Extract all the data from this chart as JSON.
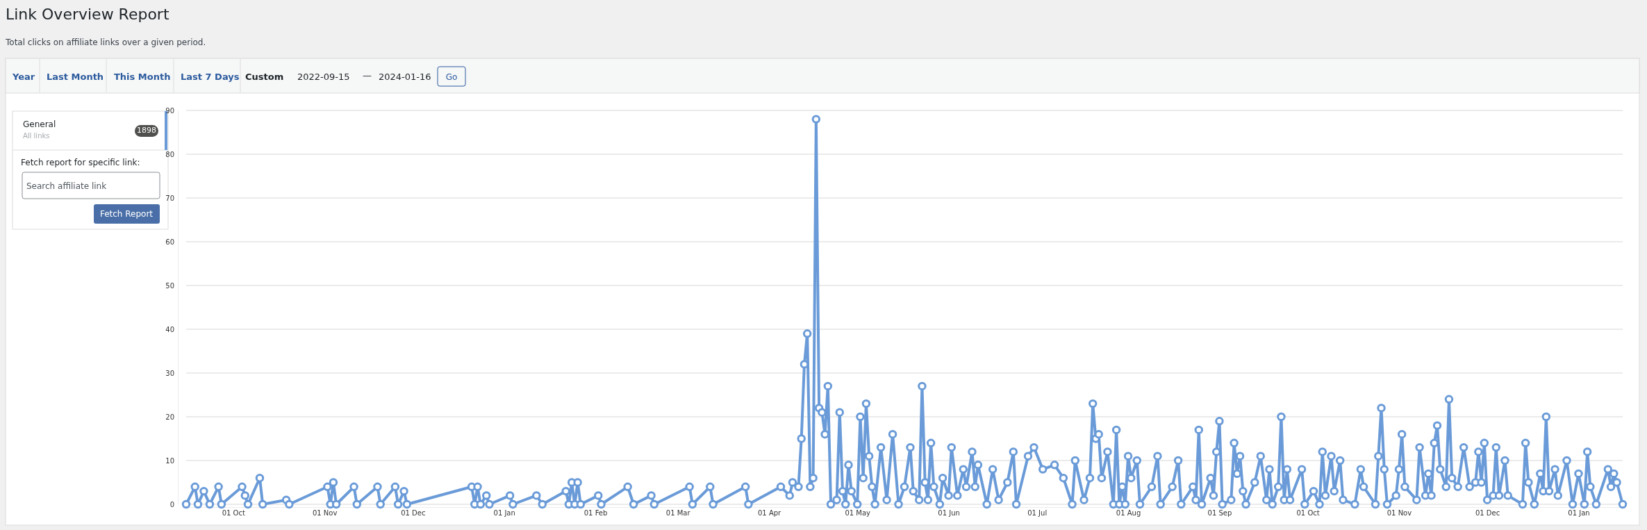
{
  "chart_data": {
    "type": "line",
    "title": "Link Overview Report",
    "subtitle": "Total clicks on affiliate links over a given period.",
    "annotations": [
      "Year",
      "Last Month",
      "This Month",
      "Last 7 Days",
      "Custom",
      "2022-09-15",
      "—",
      "2024-01-16",
      "Go",
      "General",
      "All links",
      "1898",
      "Fetch report for specific link:",
      "Search affiliate link",
      "Fetch Report"
    ],
    "xlim": [
      "2022-09-15",
      "2024-01-16"
    ],
    "xticks": [
      {
        "value": "2022-10-01",
        "label": "01 Oct"
      },
      {
        "value": "2022-11-01",
        "label": "01 Nov"
      },
      {
        "value": "2022-12-01",
        "label": "01 Dec"
      },
      {
        "value": "2023-01-01",
        "label": "01 Jan"
      },
      {
        "value": "2023-02-01",
        "label": "01 Feb"
      },
      {
        "value": "2023-03-01",
        "label": "01 Mar"
      },
      {
        "value": "2023-04-01",
        "label": "01 Apr"
      },
      {
        "value": "2023-05-01",
        "label": "01 May"
      },
      {
        "value": "2023-06-01",
        "label": "01 Jun"
      },
      {
        "value": "2023-07-01",
        "label": "01 Jul"
      },
      {
        "value": "2023-08-01",
        "label": "01 Aug"
      },
      {
        "value": "2023-09-01",
        "label": "01 Sep"
      },
      {
        "value": "2023-10-01",
        "label": "01 Oct"
      },
      {
        "value": "2023-11-01",
        "label": "01 Nov"
      },
      {
        "value": "2023-12-01",
        "label": "01 Dec"
      },
      {
        "value": "2024-01-01",
        "label": "01 Jan"
      }
    ],
    "ylim": [
      0,
      90
    ],
    "yticks": [
      0,
      10,
      20,
      30,
      40,
      50,
      60,
      70,
      80,
      90
    ],
    "grid": "y",
    "marker": "circle",
    "color": "#6a9bd8",
    "x": [
      "2022-09-15",
      "2022-09-18",
      "2022-09-19",
      "2022-09-21",
      "2022-09-23",
      "2022-09-26",
      "2022-09-27",
      "2022-10-04",
      "2022-10-05",
      "2022-10-06",
      "2022-10-10",
      "2022-10-11",
      "2022-10-19",
      "2022-10-20",
      "2022-11-02",
      "2022-11-03",
      "2022-11-04",
      "2022-11-05",
      "2022-11-11",
      "2022-11-12",
      "2022-11-19",
      "2022-11-20",
      "2022-11-25",
      "2022-11-26",
      "2022-11-28",
      "2022-11-29",
      "2022-12-21",
      "2022-12-22",
      "2022-12-23",
      "2022-12-24",
      "2022-12-26",
      "2022-12-27",
      "2023-01-03",
      "2023-01-04",
      "2023-01-12",
      "2023-01-14",
      "2023-01-22",
      "2023-01-23",
      "2023-01-24",
      "2023-01-25",
      "2023-01-26",
      "2023-01-27",
      "2023-02-02",
      "2023-02-03",
      "2023-02-12",
      "2023-02-14",
      "2023-02-20",
      "2023-02-21",
      "2023-03-05",
      "2023-03-06",
      "2023-03-12",
      "2023-03-13",
      "2023-03-24",
      "2023-03-25",
      "2023-04-05",
      "2023-04-08",
      "2023-04-09",
      "2023-04-11",
      "2023-04-12",
      "2023-04-13",
      "2023-04-14",
      "2023-04-15",
      "2023-04-16",
      "2023-04-17",
      "2023-04-18",
      "2023-04-19",
      "2023-04-20",
      "2023-04-21",
      "2023-04-22",
      "2023-04-24",
      "2023-04-25",
      "2023-04-26",
      "2023-04-27",
      "2023-04-28",
      "2023-04-29",
      "2023-05-01",
      "2023-05-02",
      "2023-05-03",
      "2023-05-04",
      "2023-05-05",
      "2023-05-06",
      "2023-05-07",
      "2023-05-09",
      "2023-05-11",
      "2023-05-13",
      "2023-05-15",
      "2023-05-17",
      "2023-05-19",
      "2023-05-20",
      "2023-05-22",
      "2023-05-23",
      "2023-05-24",
      "2023-05-25",
      "2023-05-26",
      "2023-05-27",
      "2023-05-29",
      "2023-05-30",
      "2023-06-01",
      "2023-06-02",
      "2023-06-04",
      "2023-06-06",
      "2023-06-07",
      "2023-06-09",
      "2023-06-10",
      "2023-06-11",
      "2023-06-14",
      "2023-06-16",
      "2023-06-18",
      "2023-06-21",
      "2023-06-23",
      "2023-06-24",
      "2023-06-28",
      "2023-06-30",
      "2023-07-03",
      "2023-07-07",
      "2023-07-10",
      "2023-07-13",
      "2023-07-14",
      "2023-07-17",
      "2023-07-19",
      "2023-07-20",
      "2023-07-21",
      "2023-07-22",
      "2023-07-23",
      "2023-07-25",
      "2023-07-27",
      "2023-07-28",
      "2023-07-29",
      "2023-07-30",
      "2023-07-31",
      "2023-08-01",
      "2023-08-02",
      "2023-08-04",
      "2023-08-05",
      "2023-08-09",
      "2023-08-11",
      "2023-08-12",
      "2023-08-16",
      "2023-08-18",
      "2023-08-19",
      "2023-08-23",
      "2023-08-24",
      "2023-08-25",
      "2023-08-26",
      "2023-08-29",
      "2023-08-30",
      "2023-08-31",
      "2023-09-01",
      "2023-09-02",
      "2023-09-05",
      "2023-09-06",
      "2023-09-07",
      "2023-09-08",
      "2023-09-09",
      "2023-09-10",
      "2023-09-13",
      "2023-09-15",
      "2023-09-17",
      "2023-09-18",
      "2023-09-19",
      "2023-09-21",
      "2023-09-22",
      "2023-09-23",
      "2023-09-24",
      "2023-09-25",
      "2023-09-29",
      "2023-09-30",
      "2023-10-03",
      "2023-10-05",
      "2023-10-06",
      "2023-10-07",
      "2023-10-09",
      "2023-10-10",
      "2023-10-12",
      "2023-10-13",
      "2023-10-17",
      "2023-10-19",
      "2023-10-20",
      "2023-10-24",
      "2023-10-25",
      "2023-10-26",
      "2023-10-27",
      "2023-10-28",
      "2023-10-31",
      "2023-11-01",
      "2023-11-02",
      "2023-11-03",
      "2023-11-07",
      "2023-11-08",
      "2023-11-10",
      "2023-11-11",
      "2023-11-12",
      "2023-11-13",
      "2023-11-14",
      "2023-11-15",
      "2023-11-17",
      "2023-11-18",
      "2023-11-19",
      "2023-11-21",
      "2023-11-23",
      "2023-11-25",
      "2023-11-27",
      "2023-11-28",
      "2023-11-29",
      "2023-11-30",
      "2023-12-01",
      "2023-12-03",
      "2023-12-04",
      "2023-12-05",
      "2023-12-07",
      "2023-12-08",
      "2023-12-13",
      "2023-12-14",
      "2023-12-15",
      "2023-12-17",
      "2023-12-19",
      "2023-12-20",
      "2023-12-21",
      "2023-12-22",
      "2023-12-24",
      "2023-12-25",
      "2023-12-28",
      "2023-12-30",
      "2024-01-01",
      "2024-01-03",
      "2024-01-04",
      "2024-01-05",
      "2024-01-07",
      "2024-01-11",
      "2024-01-12",
      "2024-01-13",
      "2024-01-14",
      "2024-01-16"
    ],
    "values": [
      0,
      4,
      0,
      3,
      0,
      4,
      0,
      4,
      2,
      0,
      6,
      0,
      1,
      0,
      4,
      0,
      5,
      0,
      4,
      0,
      4,
      0,
      4,
      0,
      3,
      0,
      4,
      0,
      4,
      0,
      2,
      0,
      2,
      0,
      2,
      0,
      3,
      0,
      5,
      0,
      5,
      0,
      2,
      0,
      4,
      0,
      2,
      0,
      4,
      0,
      4,
      0,
      4,
      0,
      4,
      2,
      5,
      4,
      15,
      32,
      39,
      4,
      6,
      88,
      22,
      21,
      16,
      27,
      0,
      1,
      21,
      3,
      0,
      9,
      3,
      0,
      20,
      6,
      23,
      11,
      4,
      0,
      13,
      1,
      16,
      0,
      4,
      13,
      3,
      1,
      27,
      5,
      1,
      14,
      4,
      0,
      6,
      2,
      13,
      2,
      8,
      4,
      12,
      4,
      9,
      0,
      8,
      1,
      5,
      12,
      0,
      11,
      13,
      8,
      9,
      6,
      0,
      10,
      1,
      6,
      23,
      15,
      16,
      6,
      12,
      0,
      17,
      0,
      4,
      0,
      11,
      6,
      10,
      0,
      4,
      11,
      0,
      4,
      10,
      0,
      4,
      1,
      17,
      0,
      6,
      2,
      12,
      19,
      0,
      1,
      14,
      7,
      11,
      3,
      0,
      5,
      11,
      1,
      8,
      0,
      4,
      20,
      1,
      8,
      1,
      8,
      0,
      3,
      0,
      12,
      2,
      11,
      3,
      10,
      1,
      0,
      8,
      4,
      0,
      11,
      22,
      8,
      0,
      2,
      8,
      16,
      4,
      1,
      13,
      2,
      7,
      2,
      14,
      18,
      8,
      4,
      24,
      6,
      4,
      13,
      4,
      5,
      12,
      5,
      14,
      1,
      2,
      13,
      2,
      10,
      2,
      0,
      14,
      5,
      0,
      7,
      3,
      20,
      3,
      8,
      2,
      10,
      0,
      7,
      0,
      12,
      4,
      0,
      8,
      4,
      7,
      5,
      0
    ]
  }
}
